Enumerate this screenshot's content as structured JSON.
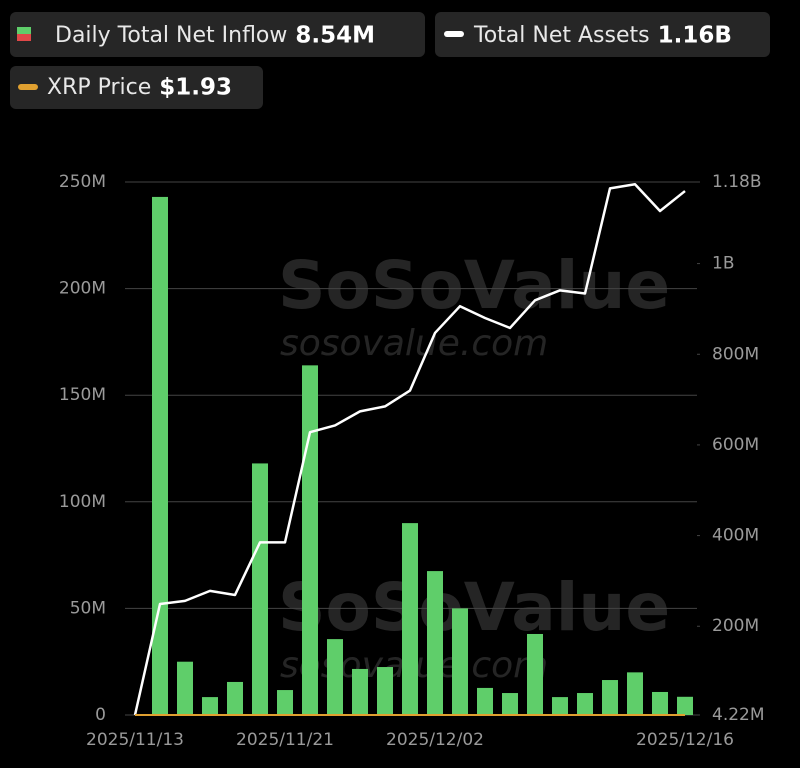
{
  "chart_data": {
    "type": "bar",
    "legend": [
      {
        "name": "Daily Total Net Inflow",
        "value_label": "8.54M"
      },
      {
        "name": "Total Net Assets",
        "value_label": "1.16B"
      },
      {
        "name": "XRP Price",
        "value_label": "$1.93"
      }
    ],
    "watermark": [
      "SoSoValue",
      "sosovalue.com"
    ],
    "categories": [
      "2025/11/13",
      null,
      null,
      null,
      null,
      null,
      "2025/11/21",
      null,
      null,
      null,
      null,
      null,
      "2025/12/02",
      null,
      null,
      null,
      null,
      null,
      null,
      null,
      null,
      null,
      "2025/12/16"
    ],
    "series": [
      {
        "name": "Daily Total Net Inflow",
        "type": "bar",
        "color": "#5fce6a",
        "values": [
          0,
          243000000,
          25000000,
          8400000,
          15500000,
          118000000,
          11700000,
          164000000,
          35600000,
          21600000,
          22500000,
          90000000,
          67500000,
          50000000,
          12700000,
          10300000,
          38000000,
          8400000,
          10300000,
          16400000,
          20000000,
          10800000,
          8540000
        ]
      },
      {
        "name": "Total Net Assets",
        "type": "line",
        "axis": "y2",
        "color": "#ffffff",
        "values": [
          4220000,
          249000000,
          256000000,
          278000000,
          269000000,
          385000000,
          385000000,
          628000000,
          643000000,
          674000000,
          685000000,
          720000000,
          847000000,
          906000000,
          880000000,
          858000000,
          919000000,
          941000000,
          934000000,
          1166000000,
          1175000000,
          1116000000,
          1160000000
        ]
      }
    ],
    "ylim": [
      0,
      250000000
    ],
    "yticks": [
      {
        "value": 0,
        "label": "0"
      },
      {
        "value": 50000000,
        "label": "50M"
      },
      {
        "value": 100000000,
        "label": "100M"
      },
      {
        "value": 150000000,
        "label": "150M"
      },
      {
        "value": 200000000,
        "label": "200M"
      },
      {
        "value": 250000000,
        "label": "250M"
      }
    ],
    "y2lim": [
      4220000,
      1180000000
    ],
    "y2ticks": [
      {
        "value": 4220000,
        "label": "4.22M"
      },
      {
        "value": 200000000,
        "label": "200M"
      },
      {
        "value": 400000000,
        "label": "400M"
      },
      {
        "value": 600000000,
        "label": "600M"
      },
      {
        "value": 800000000,
        "label": "800M"
      },
      {
        "value": 1000000000,
        "label": "1B"
      },
      {
        "value": 1180000000,
        "label": "1.18B"
      }
    ],
    "grid": true
  }
}
